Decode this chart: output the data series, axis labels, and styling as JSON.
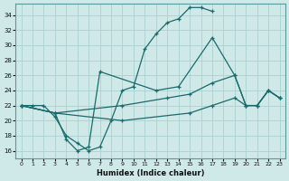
{
  "xlabel": "Humidex (Indice chaleur)",
  "bg_color": "#cfe8e8",
  "grid_color": "#aad0d0",
  "line_color": "#1a6b6b",
  "xlim": [
    -0.5,
    23.5
  ],
  "ylim": [
    15.0,
    35.5
  ],
  "xticks": [
    0,
    1,
    2,
    3,
    4,
    5,
    6,
    7,
    8,
    9,
    10,
    11,
    12,
    13,
    14,
    15,
    16,
    17,
    18,
    19,
    20,
    21,
    22,
    23
  ],
  "yticks": [
    16,
    18,
    20,
    22,
    24,
    26,
    28,
    30,
    32,
    34
  ],
  "curve1_x": [
    0,
    1,
    2,
    3,
    4,
    5,
    6,
    7,
    8,
    9,
    10,
    11,
    12,
    13,
    14,
    15,
    16,
    17
  ],
  "curve1_y": [
    22,
    22,
    22,
    20.5,
    18,
    17,
    16,
    16.5,
    20,
    24,
    24.5,
    29.5,
    31.5,
    33,
    33.5,
    35,
    35,
    34.5
  ],
  "curve2_x": [
    0,
    3,
    4,
    5,
    6,
    7,
    12,
    14,
    17,
    19,
    20,
    21,
    22,
    23
  ],
  "curve2_y": [
    22,
    21,
    17.5,
    16,
    16.5,
    26.5,
    24,
    24.5,
    31,
    26,
    22,
    22,
    24,
    23
  ],
  "curve3_x": [
    0,
    3,
    9,
    13,
    15,
    17,
    19,
    20,
    21,
    22,
    23
  ],
  "curve3_y": [
    22,
    21,
    22,
    23,
    23.5,
    25,
    26,
    22,
    22,
    24,
    23
  ],
  "curve4_x": [
    0,
    3,
    9,
    15,
    17,
    19,
    20,
    21,
    22,
    23
  ],
  "curve4_y": [
    22,
    21,
    20,
    21,
    22,
    23,
    22,
    22,
    24,
    23
  ]
}
